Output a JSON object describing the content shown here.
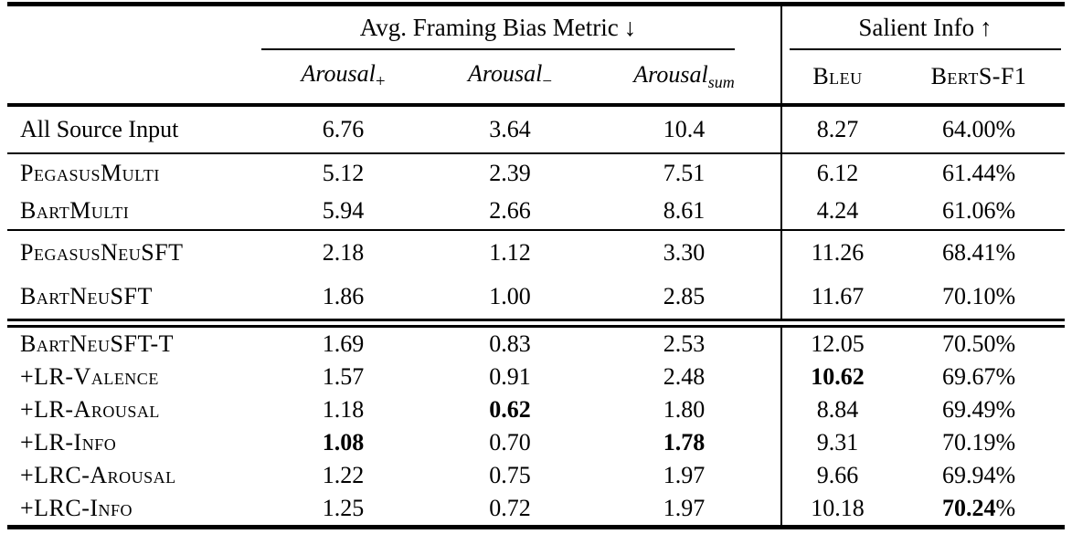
{
  "table": {
    "group_headers": [
      {
        "label": "Avg. Framing Bias Metric",
        "arrow": "↓"
      },
      {
        "label": "Salient Info",
        "arrow": "↑"
      }
    ],
    "column_headers": [
      {
        "base": "Arousal",
        "sub": "+"
      },
      {
        "base": "Arousal",
        "sub": "−"
      },
      {
        "base": "Arousal",
        "sub": "sum"
      },
      {
        "label": "Bleu"
      },
      {
        "label": "BertS-F1"
      }
    ],
    "column_keys": [
      "arousal-plus",
      "arousal-minus",
      "arousal-sum",
      "bleu",
      "berts-f1"
    ],
    "row_groups": [
      {
        "css": "h-asi",
        "separator": "none",
        "rows": [
          {
            "label": "All Source Input",
            "smallcaps": false,
            "values": [
              "6.76",
              "3.64",
              "10.4",
              "8.27",
              "64.00%"
            ],
            "bold": []
          }
        ]
      },
      {
        "css": "h-multi",
        "separator": "single",
        "rows": [
          {
            "label": "PegasusMulti",
            "smallcaps": true,
            "values": [
              "5.12",
              "2.39",
              "7.51",
              "6.12",
              "61.44%"
            ],
            "bold": []
          },
          {
            "label": "BartMulti",
            "smallcaps": true,
            "values": [
              "5.94",
              "2.66",
              "8.61",
              "4.24",
              "61.06%"
            ],
            "bold": []
          }
        ]
      },
      {
        "css": "h-neu",
        "separator": "single",
        "rows": [
          {
            "label": "PegasusNeuSFT",
            "smallcaps": true,
            "values": [
              "2.18",
              "1.12",
              "3.30",
              "11.26",
              "68.41%"
            ],
            "bold": []
          },
          {
            "label": "BartNeuSFT",
            "smallcaps": true,
            "values": [
              "1.86",
              "1.00",
              "2.85",
              "11.67",
              "70.10%"
            ],
            "bold": []
          }
        ]
      },
      {
        "css": "h-final",
        "separator": "double",
        "rows": [
          {
            "label": "BartNeuSFT-T",
            "smallcaps": true,
            "values": [
              "1.69",
              "0.83",
              "2.53",
              "12.05",
              "70.50%"
            ],
            "bold": []
          },
          {
            "label": "+LR-Valence",
            "smallcaps": true,
            "values": [
              "1.57",
              "0.91",
              "2.48",
              "10.62",
              "69.67%"
            ],
            "bold": [
              3
            ]
          },
          {
            "label": "+LR-Arousal",
            "smallcaps": true,
            "values": [
              "1.18",
              "0.62",
              "1.80",
              "8.84",
              "69.49%"
            ],
            "bold": [
              1
            ]
          },
          {
            "label": "+LR-Info",
            "smallcaps": true,
            "values": [
              "1.08",
              "0.70",
              "1.78",
              "9.31",
              "70.19%"
            ],
            "bold": [
              0,
              2
            ]
          },
          {
            "label": "+LRC-Arousal",
            "smallcaps": true,
            "values": [
              "1.22",
              "0.75",
              "1.97",
              "9.66",
              "69.94%"
            ],
            "bold": []
          },
          {
            "label": "+LRC-Info",
            "smallcaps": true,
            "values": [
              "1.25",
              "0.72",
              "1.97",
              "10.18",
              "70.24%"
            ],
            "bold": [
              4
            ]
          }
        ]
      }
    ]
  }
}
